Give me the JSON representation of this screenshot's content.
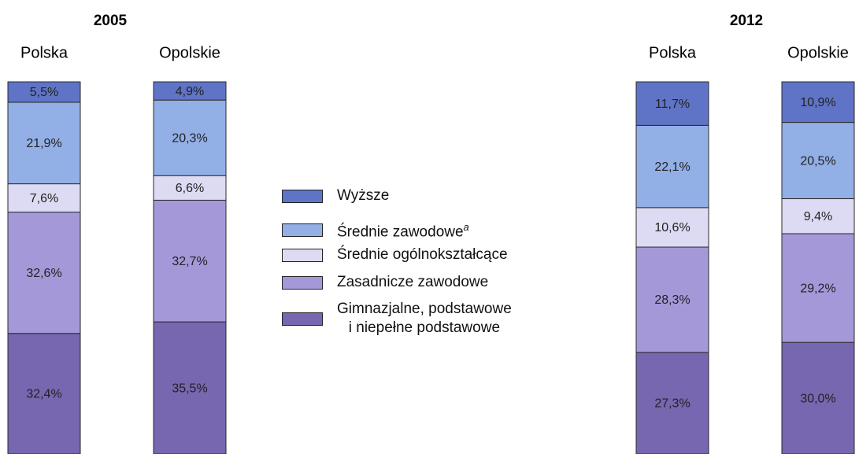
{
  "chart_data": {
    "type": "bar",
    "stacked": true,
    "ylim": [
      0,
      100
    ],
    "groups": [
      {
        "title": "2005",
        "categories": [
          "Polska",
          "Opolskie"
        ]
      },
      {
        "title": "2012",
        "categories": [
          "Polska",
          "Opolskie"
        ]
      }
    ],
    "series": [
      {
        "name": "Gimnazjalne, podstawowe\ni niepełne podstawowe",
        "color": "#7766b0",
        "values": [
          32.4,
          35.5,
          27.3,
          30.0
        ],
        "value_labels": [
          "32,4%",
          "35,5%",
          "27,3%",
          "30,0%"
        ]
      },
      {
        "name": "Zasadnicze zawodowe",
        "color": "#a598d9",
        "values": [
          32.6,
          32.7,
          28.3,
          29.2
        ],
        "value_labels": [
          "32,6%",
          "32,7%",
          "28,3%",
          "29,2%"
        ]
      },
      {
        "name": "Średnie ogólnokształcące",
        "color": "#dddbf3",
        "values": [
          7.6,
          6.6,
          10.6,
          9.4
        ],
        "value_labels": [
          "7,6%",
          "6,6%",
          "10,6%",
          "9,4%"
        ]
      },
      {
        "name": "Średnie zawodowe",
        "note": "a",
        "color": "#92afe6",
        "values": [
          21.9,
          20.3,
          22.1,
          20.5
        ],
        "value_labels": [
          "21,9%",
          "20,3%",
          "22,1%",
          "20,5%"
        ]
      },
      {
        "name": "Wyższe",
        "color": "#5f74c6",
        "values": [
          5.5,
          4.9,
          11.7,
          10.9
        ],
        "value_labels": [
          "5,5%",
          "4,9%",
          "11,7%",
          "10,9%"
        ]
      }
    ]
  }
}
